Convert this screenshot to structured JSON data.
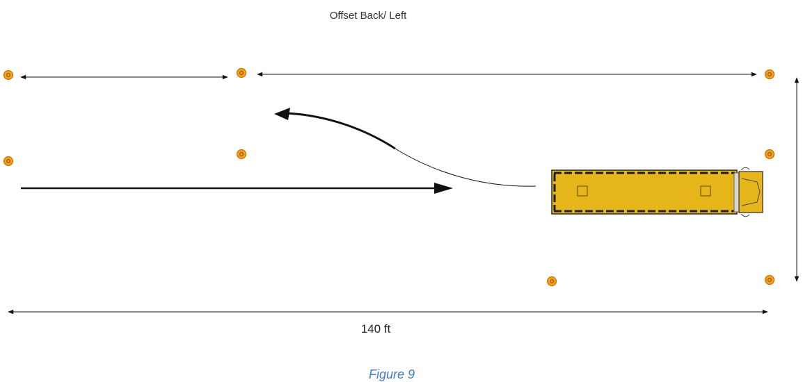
{
  "diagram": {
    "title": "Offset Back/ Left",
    "distance_label": "140 ft"
  },
  "caption": "Figure 9",
  "icons": {
    "cone": "traffic-cone-icon",
    "vehicle": "school-bus-icon"
  },
  "colors": {
    "cone": "#F5A01E",
    "cone_outline": "#C97400",
    "bus": "#E5B519",
    "arrow": "#111111",
    "caption": "#3E7CC6"
  }
}
